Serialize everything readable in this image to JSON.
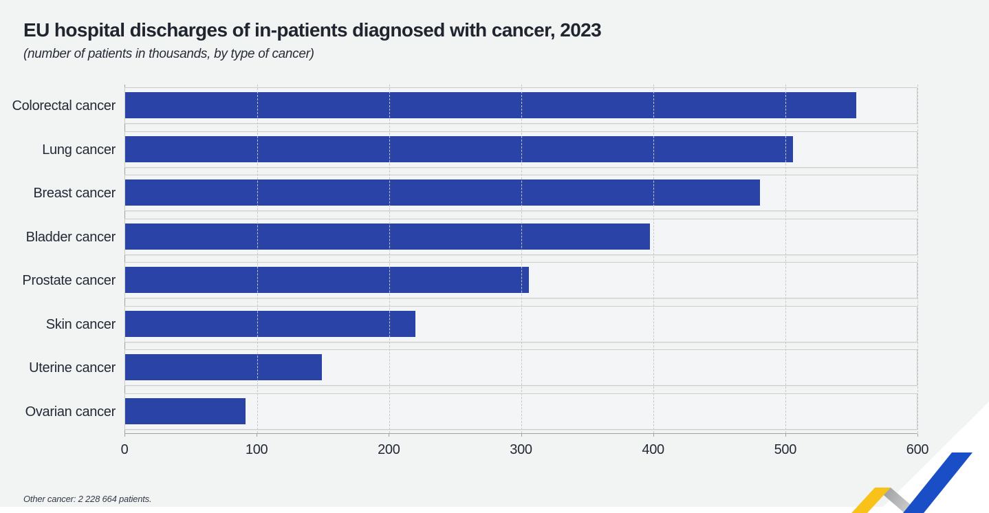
{
  "title": "EU hospital discharges of in-patients diagnosed with cancer, 2023",
  "subtitle": "(number of patients in thousands, by type of cancer)",
  "footnote": "Other cancer: 2 228 664 patients.",
  "colors": {
    "background": "#f2f3f3",
    "bar": "#2a43a6",
    "text": "#232733",
    "grid": "#c5c8c9",
    "axis": "#9da2a4",
    "logo_blue": "#1a4ec6",
    "logo_yellow": "#f8c21b",
    "logo_gray_dark": "#909294",
    "logo_gray_light": "#dcdcdc"
  },
  "chart_data": {
    "type": "bar",
    "orientation": "horizontal",
    "title": "EU hospital discharges of in-patients diagnosed with cancer, 2023",
    "subtitle": "(number of patients in thousands, by type of cancer)",
    "categories": [
      "Colorectal cancer",
      "Lung cancer",
      "Breast cancer",
      "Bladder cancer",
      "Prostate cancer",
      "Skin cancer",
      "Uterine cancer",
      "Ovarian cancer"
    ],
    "values": [
      554,
      506,
      481,
      398,
      306,
      220,
      149,
      91
    ],
    "unit": "thousands of patients",
    "xlabel": "",
    "ylabel": "",
    "xlim": [
      0,
      600
    ],
    "xticks": [
      0,
      100,
      200,
      300,
      400,
      500,
      600
    ],
    "grid": "vertical-dashed",
    "legend": "none",
    "annotation": "Other cancer: 2 228 664 patients."
  },
  "logo": {
    "name": "eurostat-zigzag-logo"
  }
}
